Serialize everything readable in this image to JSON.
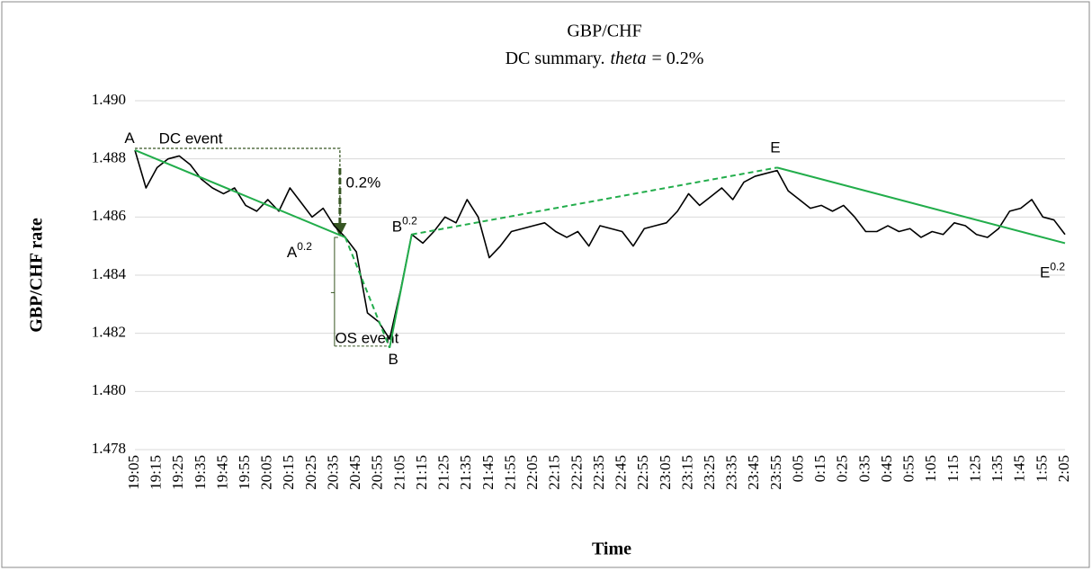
{
  "chart_data": {
    "type": "line",
    "title": "GBP/CHF",
    "subtitle": [
      "DC summary.",
      "theta",
      "= 0.2%"
    ],
    "x_label": "Time",
    "y_label": "GBP/CHF rate",
    "ylim": [
      1.478,
      1.49
    ],
    "yticks": [
      {
        "value": 1.49,
        "label": "1.490"
      },
      1.488,
      1.486,
      1.484,
      1.482,
      {
        "value": 1.48,
        "label": "1.480"
      },
      1.478
    ],
    "grid": true,
    "categories": [
      "19:05",
      null,
      "19:15",
      null,
      "19:25",
      null,
      "19:35",
      null,
      "19:45",
      null,
      "19:55",
      null,
      "20:05",
      null,
      "20:15",
      null,
      "20:25",
      null,
      "20:35",
      null,
      "20:45",
      null,
      "20:55",
      null,
      "21:05",
      null,
      "21:15",
      null,
      "21:25",
      null,
      "21:35",
      null,
      "21:45",
      null,
      "21:55",
      null,
      "22:05",
      null,
      "22:15",
      null,
      "22:25",
      null,
      "22:35",
      null,
      "22:45",
      null,
      "22:55",
      null,
      "23:05",
      null,
      "23:15",
      null,
      "23:25",
      null,
      "23:35",
      null,
      "23:45",
      null,
      "23:55",
      null,
      "0:05",
      null,
      "0:15",
      null,
      "0:25",
      null,
      "0:35",
      null,
      "0:45",
      null,
      "0:55",
      null,
      "1:05",
      null,
      "1:15",
      null,
      "1:25",
      null,
      "1:35",
      null,
      "1:45",
      null,
      "1:55",
      null,
      "2:05"
    ],
    "series": [
      {
        "color": "#000000",
        "values": [
          1.4883,
          1.487,
          1.4877,
          1.488,
          1.4881,
          1.4878,
          1.4873,
          1.487,
          1.4868,
          1.487,
          1.4864,
          1.4862,
          1.4866,
          1.4862,
          1.487,
          1.4865,
          1.486,
          1.4863,
          1.4857,
          1.4853,
          1.4848,
          1.4827,
          1.4824,
          1.4818,
          1.4835,
          1.4854,
          1.4851,
          1.4855,
          1.486,
          1.4858,
          1.4866,
          1.486,
          1.4846,
          1.485,
          1.4855,
          1.4856,
          1.4857,
          1.4858,
          1.4855,
          1.4853,
          1.4855,
          1.485,
          1.4857,
          1.4856,
          1.4855,
          1.485,
          1.4856,
          1.4857,
          1.4858,
          1.4862,
          1.4868,
          1.4864,
          1.4867,
          1.487,
          1.4866,
          1.4872,
          1.4874,
          1.4875,
          1.4876,
          1.4869,
          1.4866,
          1.4863,
          1.4864,
          1.4862,
          1.4864,
          1.486,
          1.4855,
          1.4855,
          1.4857,
          1.4855,
          1.4856,
          1.4853,
          1.4855,
          1.4854,
          1.4858,
          1.4857,
          1.4854,
          1.4853,
          1.4856,
          1.4862,
          1.4863,
          1.4866,
          1.486,
          1.4859,
          1.4854
        ]
      }
    ],
    "events": [
      {
        "label": "A",
        "at": 0,
        "value": 1.4883
      },
      {
        "label": "A",
        "sup": "0.2",
        "at": 19,
        "value": 1.4853
      },
      {
        "label": "B",
        "at": 23,
        "value": 1.4815
      },
      {
        "label": "B",
        "sup": "0.2",
        "at": 25,
        "value": 1.4854
      },
      {
        "label": "E",
        "at": 58,
        "value": 1.4877
      },
      {
        "label": "E",
        "sup": "0.2",
        "at": 84,
        "value": 1.4851
      }
    ],
    "trend_color": "#22ad4b",
    "segment_styles": [
      "solid",
      "dashed",
      "solid",
      "dashed",
      "solid"
    ],
    "annotation_color": "#375623",
    "dc_event_label": "DC event",
    "threshold_label": "0.2%",
    "os_event_label": "OS event"
  }
}
